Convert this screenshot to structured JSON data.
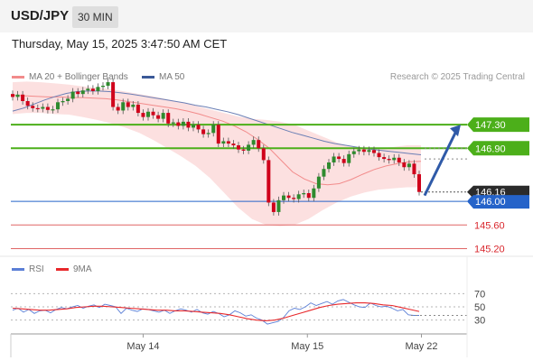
{
  "header": {
    "pair": "USD/JPY",
    "timeframe": "30 MIN"
  },
  "date_text": "Thursday, May 15, 2025 3:47:50 AM CET",
  "price_legend": [
    {
      "label": "MA 20 + Bollinger Bands",
      "color": "#f28b8b"
    },
    {
      "label": "MA 50",
      "color": "#3b5998"
    }
  ],
  "research": "Research © 2025 Trading Central",
  "rsi_legend": [
    {
      "label": "RSI",
      "color": "#5b7fd6"
    },
    {
      "label": "9MA",
      "color": "#e8282b"
    }
  ],
  "chart_data": [
    {
      "type": "candlestick",
      "title": "USD/JPY",
      "timeframe": "30 MIN",
      "ylim": [
        145.1,
        147.7
      ],
      "current_price": 146.16,
      "levels": [
        {
          "value": 147.3,
          "label": "147.30",
          "color": "#4caf1a",
          "kind": "resistance"
        },
        {
          "value": 146.9,
          "label": "146.90",
          "color": "#4caf1a",
          "kind": "resistance"
        },
        {
          "value": 146.0,
          "label": "146.00",
          "color": "#2563c9",
          "kind": "pivot"
        },
        {
          "value": 145.6,
          "label": "145.60",
          "color": "#e06666",
          "kind": "support"
        },
        {
          "value": 145.2,
          "label": "145.20",
          "color": "#e06666",
          "kind": "support"
        }
      ],
      "arrow": {
        "from": 146.1,
        "to": 147.3,
        "direction": "up"
      },
      "x_ticks": [
        {
          "label": "May 14",
          "pos": 0.29
        },
        {
          "label": "May 15",
          "pos": 0.65
        },
        {
          "label": "May 22",
          "pos": 0.9
        }
      ],
      "closes": [
        147.77,
        147.81,
        147.7,
        147.62,
        147.58,
        147.57,
        147.6,
        147.55,
        147.56,
        147.68,
        147.7,
        147.74,
        147.86,
        147.82,
        147.88,
        147.91,
        147.87,
        147.94,
        147.96,
        148.02,
        147.6,
        147.54,
        147.68,
        147.6,
        147.64,
        147.5,
        147.43,
        147.52,
        147.46,
        147.4,
        147.5,
        147.32,
        147.34,
        147.28,
        147.35,
        147.25,
        147.3,
        147.22,
        147.14,
        147.16,
        147.3,
        146.98,
        147.02,
        146.98,
        146.95,
        146.88,
        146.86,
        146.96,
        147.04,
        146.9,
        146.7,
        145.98,
        145.82,
        146.02,
        146.1,
        146.06,
        146.04,
        146.12,
        146.14,
        146.06,
        146.22,
        146.42,
        146.55,
        146.66,
        146.76,
        146.72,
        146.65,
        146.8,
        146.85,
        146.88,
        146.84,
        146.87,
        146.82,
        146.75,
        146.72,
        146.7,
        146.74,
        146.66,
        146.58,
        146.64,
        146.46,
        146.16
      ],
      "ma50": [
        147.53,
        147.58,
        147.65,
        147.72,
        147.78,
        147.83,
        147.86,
        147.87,
        147.87,
        147.86,
        147.84,
        147.82,
        147.79,
        147.76,
        147.73,
        147.7,
        147.67,
        147.63,
        147.6,
        147.56,
        147.52,
        147.47,
        147.41,
        147.35,
        147.29,
        147.23,
        147.17,
        147.12,
        147.07,
        147.02,
        146.98,
        146.95,
        146.92,
        146.89,
        146.87,
        146.85,
        146.83,
        146.81,
        146.79
      ],
      "ma20": [
        147.8,
        147.79,
        147.78,
        147.77,
        147.77,
        147.76,
        147.76,
        147.75,
        147.74,
        147.72,
        147.69,
        147.66,
        147.63,
        147.6,
        147.57,
        147.53,
        147.48,
        147.42,
        147.36,
        147.28,
        147.18,
        147.05,
        146.9,
        146.7,
        146.5,
        146.38,
        146.3,
        146.28,
        146.3,
        146.37,
        146.46,
        146.54,
        146.6,
        146.64,
        146.67,
        146.68
      ],
      "bb_upper": [
        148.02,
        148.03,
        148.02,
        148.0,
        147.98,
        147.95,
        147.93,
        147.9,
        147.86,
        147.82,
        147.78,
        147.73,
        147.68,
        147.62,
        147.56,
        147.5,
        147.44,
        147.4,
        147.38,
        147.35,
        147.3,
        147.2,
        147.1,
        147.0,
        146.93,
        146.9,
        146.9,
        146.92,
        146.95,
        146.95
      ],
      "bb_lower": [
        147.48,
        147.5,
        147.5,
        147.48,
        147.47,
        147.43,
        147.38,
        147.32,
        147.25,
        147.16,
        147.04,
        146.9,
        146.76,
        146.6,
        146.4,
        146.15,
        145.9,
        145.7,
        145.6,
        145.58,
        145.6,
        145.7,
        145.85,
        145.98,
        146.08,
        146.15,
        146.2,
        146.22,
        146.24,
        146.24
      ]
    },
    {
      "type": "line",
      "title": "RSI",
      "ylim": [
        20,
        80
      ],
      "y_ticks": [
        70,
        50,
        30
      ],
      "series": [
        {
          "name": "RSI",
          "color": "#5b7fd6",
          "values": [
            45,
            48,
            42,
            46,
            40,
            44,
            45,
            41,
            46,
            49,
            47,
            50,
            52,
            48,
            51,
            53,
            49,
            54,
            52,
            50,
            40,
            48,
            45,
            43,
            47,
            46,
            44,
            42,
            45,
            40,
            44,
            47,
            45,
            42,
            46,
            41,
            39,
            43,
            40,
            35,
            38,
            44,
            41,
            36,
            38,
            33,
            30,
            24,
            26,
            28,
            34,
            44,
            48,
            46,
            50,
            56,
            52,
            55,
            58,
            54,
            59,
            61,
            57,
            53,
            50,
            49,
            56,
            52,
            50,
            51,
            48,
            44,
            46,
            38,
            37,
            37
          ]
        },
        {
          "name": "9MA",
          "color": "#e8282b",
          "values": [
            48,
            47,
            46,
            45,
            45,
            46,
            47,
            49,
            50,
            51,
            51,
            50,
            49,
            48,
            47,
            46,
            45,
            45,
            44,
            44,
            43,
            42,
            41,
            40,
            38,
            35,
            32,
            30,
            29,
            30,
            33,
            37,
            41,
            45,
            49,
            52,
            54,
            55,
            56,
            56,
            55,
            53,
            52,
            49,
            46,
            43
          ]
        }
      ]
    }
  ]
}
